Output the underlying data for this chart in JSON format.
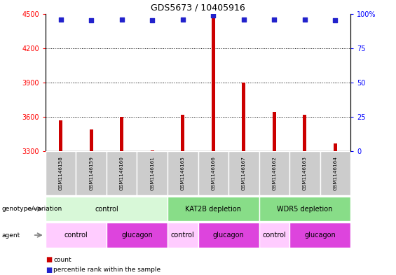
{
  "title": "GDS5673 / 10405916",
  "samples": [
    "GSM1146158",
    "GSM1146159",
    "GSM1146160",
    "GSM1146161",
    "GSM1146165",
    "GSM1146166",
    "GSM1146167",
    "GSM1146162",
    "GSM1146163",
    "GSM1146164"
  ],
  "counts": [
    3570,
    3490,
    3600,
    3310,
    3620,
    4490,
    3900,
    3640,
    3620,
    3370
  ],
  "percentiles": [
    96,
    95,
    96,
    95,
    96,
    99,
    96,
    96,
    96,
    95
  ],
  "ylim_left": [
    3300,
    4500
  ],
  "ylim_right": [
    0,
    100
  ],
  "yticks_left": [
    3300,
    3600,
    3900,
    4200,
    4500
  ],
  "yticks_right": [
    0,
    25,
    50,
    75,
    100
  ],
  "bar_color": "#cc0000",
  "dot_color": "#2222cc",
  "genotype_groups": [
    {
      "label": "control",
      "start": 0,
      "end": 4,
      "color": "#d8f8d8"
    },
    {
      "label": "KAT2B depletion",
      "start": 4,
      "end": 7,
      "color": "#88dd88"
    },
    {
      "label": "WDR5 depletion",
      "start": 7,
      "end": 10,
      "color": "#88dd88"
    }
  ],
  "agent_groups": [
    {
      "label": "control",
      "start": 0,
      "end": 2,
      "color": "#ffccff"
    },
    {
      "label": "glucagon",
      "start": 2,
      "end": 4,
      "color": "#dd44dd"
    },
    {
      "label": "control",
      "start": 4,
      "end": 5,
      "color": "#ffccff"
    },
    {
      "label": "glucagon",
      "start": 5,
      "end": 7,
      "color": "#dd44dd"
    },
    {
      "label": "control",
      "start": 7,
      "end": 8,
      "color": "#ffccff"
    },
    {
      "label": "glucagon",
      "start": 8,
      "end": 10,
      "color": "#dd44dd"
    }
  ],
  "legend_count_color": "#cc0000",
  "legend_pct_color": "#2222cc",
  "sample_box_color": "#cccccc",
  "bar_width": 0.12
}
